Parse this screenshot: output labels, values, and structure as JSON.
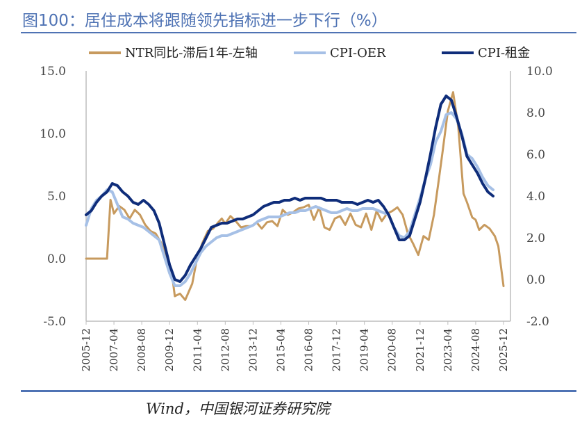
{
  "header": {
    "title": "图100：居住成本将跟随领先指标进一步下行（%）"
  },
  "footer": {
    "source": "Wind，中国银河证券研究院"
  },
  "chart_data": {
    "type": "line",
    "x_ticks": [
      "2005-12",
      "2007-04",
      "2008-08",
      "2009-12",
      "2011-04",
      "2012-08",
      "2013-12",
      "2015-04",
      "2016-08",
      "2017-12",
      "2019-04",
      "2020-08",
      "2021-12",
      "2023-04",
      "2024-08",
      "2025-12"
    ],
    "y_left": {
      "min": -5,
      "max": 15,
      "ticks": [
        "-5.0",
        "0.0",
        "5.0",
        "10.0",
        "15.0"
      ]
    },
    "y_right": {
      "min": -2,
      "max": 10,
      "ticks": [
        "-2.0",
        "0.0",
        "2.0",
        "4.0",
        "6.0",
        "8.0",
        "10.0"
      ]
    },
    "legend_position": "top",
    "series": [
      {
        "name": "NTR同比-滞后1年-左轴",
        "axis": "left",
        "color": "#c79a5e",
        "width": 3,
        "points": [
          [
            "2005-12",
            0.0
          ],
          [
            "2006-03",
            0.0
          ],
          [
            "2006-06",
            0.0
          ],
          [
            "2006-09",
            0.0
          ],
          [
            "2006-12",
            0.0
          ],
          [
            "2007-02",
            4.7
          ],
          [
            "2007-04",
            3.6
          ],
          [
            "2007-07",
            4.2
          ],
          [
            "2007-10",
            3.9
          ],
          [
            "2008-01",
            3.2
          ],
          [
            "2008-04",
            3.9
          ],
          [
            "2008-07",
            3.5
          ],
          [
            "2008-10",
            2.7
          ],
          [
            "2009-01",
            2.2
          ],
          [
            "2009-04",
            2.0
          ],
          [
            "2009-07",
            1.3
          ],
          [
            "2009-10",
            0.2
          ],
          [
            "2010-01",
            -0.8
          ],
          [
            "2010-03",
            -3.0
          ],
          [
            "2010-06",
            -2.8
          ],
          [
            "2010-09",
            -3.3
          ],
          [
            "2011-01",
            -2.0
          ],
          [
            "2011-04",
            0.2
          ],
          [
            "2011-07",
            1.3
          ],
          [
            "2011-10",
            2.2
          ],
          [
            "2012-01",
            2.4
          ],
          [
            "2012-04",
            2.9
          ],
          [
            "2012-06",
            3.2
          ],
          [
            "2012-08",
            2.8
          ],
          [
            "2012-11",
            3.4
          ],
          [
            "2013-02",
            3.0
          ],
          [
            "2013-05",
            2.5
          ],
          [
            "2013-08",
            2.6
          ],
          [
            "2013-11",
            2.6
          ],
          [
            "2014-02",
            2.9
          ],
          [
            "2014-05",
            2.4
          ],
          [
            "2014-08",
            2.9
          ],
          [
            "2014-11",
            3.0
          ],
          [
            "2015-02",
            2.6
          ],
          [
            "2015-05",
            3.9
          ],
          [
            "2015-08",
            3.5
          ],
          [
            "2015-11",
            3.7
          ],
          [
            "2016-02",
            4.0
          ],
          [
            "2016-05",
            4.1
          ],
          [
            "2016-08",
            4.3
          ],
          [
            "2016-11",
            3.1
          ],
          [
            "2017-02",
            4.1
          ],
          [
            "2017-05",
            2.5
          ],
          [
            "2017-08",
            2.3
          ],
          [
            "2017-11",
            3.2
          ],
          [
            "2018-02",
            3.4
          ],
          [
            "2018-05",
            2.7
          ],
          [
            "2018-08",
            3.6
          ],
          [
            "2018-11",
            2.7
          ],
          [
            "2019-02",
            2.5
          ],
          [
            "2019-05",
            3.6
          ],
          [
            "2019-08",
            2.3
          ],
          [
            "2019-11",
            3.8
          ],
          [
            "2020-02",
            3.0
          ],
          [
            "2020-05",
            3.6
          ],
          [
            "2020-08",
            3.8
          ],
          [
            "2020-11",
            4.1
          ],
          [
            "2021-02",
            3.5
          ],
          [
            "2021-05",
            2.0
          ],
          [
            "2021-08",
            1.2
          ],
          [
            "2021-11",
            0.3
          ],
          [
            "2022-02",
            1.8
          ],
          [
            "2022-05",
            1.5
          ],
          [
            "2022-08",
            3.5
          ],
          [
            "2022-11",
            6.5
          ],
          [
            "2023-01",
            8.6
          ],
          [
            "2023-04",
            11.8
          ],
          [
            "2023-07",
            13.3
          ],
          [
            "2023-10",
            10.5
          ],
          [
            "2024-01",
            5.2
          ],
          [
            "2024-03",
            4.5
          ],
          [
            "2024-06",
            3.3
          ],
          [
            "2024-08",
            3.1
          ],
          [
            "2024-10",
            2.3
          ],
          [
            "2025-01",
            2.7
          ],
          [
            "2025-04",
            2.4
          ],
          [
            "2025-07",
            1.8
          ],
          [
            "2025-09",
            1.0
          ],
          [
            "2025-12",
            -2.2
          ]
        ]
      },
      {
        "name": "CPI-OER",
        "axis": "right",
        "color": "#a6c0e6",
        "width": 4,
        "points": [
          [
            "2005-12",
            2.6
          ],
          [
            "2006-03",
            3.4
          ],
          [
            "2006-06",
            3.8
          ],
          [
            "2006-09",
            4.0
          ],
          [
            "2006-12",
            4.3
          ],
          [
            "2007-03",
            4.2
          ],
          [
            "2007-06",
            3.6
          ],
          [
            "2007-09",
            3.0
          ],
          [
            "2007-12",
            2.9
          ],
          [
            "2008-03",
            2.7
          ],
          [
            "2008-06",
            2.6
          ],
          [
            "2008-09",
            2.5
          ],
          [
            "2008-12",
            2.3
          ],
          [
            "2009-03",
            2.1
          ],
          [
            "2009-06",
            1.9
          ],
          [
            "2009-09",
            1.1
          ],
          [
            "2009-12",
            0.3
          ],
          [
            "2010-03",
            -0.3
          ],
          [
            "2010-06",
            -0.3
          ],
          [
            "2010-09",
            -0.1
          ],
          [
            "2010-12",
            0.3
          ],
          [
            "2011-03",
            0.8
          ],
          [
            "2011-06",
            1.3
          ],
          [
            "2011-09",
            1.6
          ],
          [
            "2011-12",
            1.8
          ],
          [
            "2012-03",
            2.0
          ],
          [
            "2012-06",
            2.1
          ],
          [
            "2012-09",
            2.1
          ],
          [
            "2012-12",
            2.2
          ],
          [
            "2013-03",
            2.3
          ],
          [
            "2013-06",
            2.4
          ],
          [
            "2013-09",
            2.5
          ],
          [
            "2013-12",
            2.6
          ],
          [
            "2014-03",
            2.8
          ],
          [
            "2014-06",
            2.9
          ],
          [
            "2014-09",
            3.0
          ],
          [
            "2014-12",
            3.0
          ],
          [
            "2015-03",
            3.0
          ],
          [
            "2015-06",
            3.1
          ],
          [
            "2015-09",
            3.2
          ],
          [
            "2015-12",
            3.2
          ],
          [
            "2016-03",
            3.3
          ],
          [
            "2016-06",
            3.3
          ],
          [
            "2016-09",
            3.4
          ],
          [
            "2016-12",
            3.5
          ],
          [
            "2017-03",
            3.4
          ],
          [
            "2017-06",
            3.3
          ],
          [
            "2017-09",
            3.2
          ],
          [
            "2017-12",
            3.2
          ],
          [
            "2018-03",
            3.3
          ],
          [
            "2018-06",
            3.4
          ],
          [
            "2018-09",
            3.3
          ],
          [
            "2018-12",
            3.3
          ],
          [
            "2019-03",
            3.4
          ],
          [
            "2019-06",
            3.4
          ],
          [
            "2019-09",
            3.4
          ],
          [
            "2019-12",
            3.3
          ],
          [
            "2020-03",
            3.2
          ],
          [
            "2020-06",
            3.1
          ],
          [
            "2020-09",
            2.5
          ],
          [
            "2020-12",
            2.1
          ],
          [
            "2021-03",
            2.0
          ],
          [
            "2021-06",
            2.3
          ],
          [
            "2021-09",
            3.1
          ],
          [
            "2021-12",
            3.9
          ],
          [
            "2022-03",
            4.8
          ],
          [
            "2022-06",
            5.5
          ],
          [
            "2022-09",
            6.6
          ],
          [
            "2022-12",
            7.1
          ],
          [
            "2023-03",
            7.9
          ],
          [
            "2023-06",
            8.0
          ],
          [
            "2023-09",
            7.7
          ],
          [
            "2023-12",
            7.0
          ],
          [
            "2024-03",
            6.0
          ],
          [
            "2024-06",
            5.8
          ],
          [
            "2024-09",
            5.4
          ],
          [
            "2024-12",
            4.9
          ],
          [
            "2025-03",
            4.5
          ],
          [
            "2025-06",
            4.3
          ]
        ]
      },
      {
        "name": "CPI-租金",
        "axis": "right",
        "color": "#0f2d7a",
        "width": 4,
        "points": [
          [
            "2005-12",
            3.1
          ],
          [
            "2006-03",
            3.3
          ],
          [
            "2006-06",
            3.7
          ],
          [
            "2006-09",
            4.0
          ],
          [
            "2006-12",
            4.2
          ],
          [
            "2007-03",
            4.6
          ],
          [
            "2007-06",
            4.5
          ],
          [
            "2007-09",
            4.2
          ],
          [
            "2007-12",
            4.0
          ],
          [
            "2008-03",
            3.7
          ],
          [
            "2008-06",
            3.6
          ],
          [
            "2008-09",
            3.8
          ],
          [
            "2008-12",
            3.6
          ],
          [
            "2009-03",
            3.3
          ],
          [
            "2009-06",
            2.7
          ],
          [
            "2009-09",
            1.7
          ],
          [
            "2009-12",
            0.7
          ],
          [
            "2010-03",
            0.0
          ],
          [
            "2010-06",
            -0.1
          ],
          [
            "2010-09",
            0.2
          ],
          [
            "2010-12",
            0.7
          ],
          [
            "2011-03",
            1.1
          ],
          [
            "2011-06",
            1.5
          ],
          [
            "2011-09",
            2.0
          ],
          [
            "2011-12",
            2.5
          ],
          [
            "2012-03",
            2.6
          ],
          [
            "2012-06",
            2.7
          ],
          [
            "2012-09",
            2.7
          ],
          [
            "2012-12",
            2.8
          ],
          [
            "2013-03",
            2.9
          ],
          [
            "2013-06",
            2.9
          ],
          [
            "2013-09",
            3.0
          ],
          [
            "2013-12",
            3.1
          ],
          [
            "2014-03",
            3.3
          ],
          [
            "2014-06",
            3.5
          ],
          [
            "2014-09",
            3.6
          ],
          [
            "2014-12",
            3.7
          ],
          [
            "2015-03",
            3.7
          ],
          [
            "2015-06",
            3.8
          ],
          [
            "2015-09",
            3.8
          ],
          [
            "2015-12",
            3.9
          ],
          [
            "2016-03",
            3.8
          ],
          [
            "2016-06",
            3.9
          ],
          [
            "2016-09",
            3.9
          ],
          [
            "2016-12",
            3.9
          ],
          [
            "2017-03",
            3.9
          ],
          [
            "2017-06",
            3.8
          ],
          [
            "2017-09",
            3.8
          ],
          [
            "2017-12",
            3.8
          ],
          [
            "2018-03",
            3.7
          ],
          [
            "2018-06",
            3.7
          ],
          [
            "2018-09",
            3.7
          ],
          [
            "2018-12",
            3.6
          ],
          [
            "2019-03",
            3.7
          ],
          [
            "2019-06",
            3.8
          ],
          [
            "2019-09",
            3.7
          ],
          [
            "2019-12",
            3.8
          ],
          [
            "2020-03",
            3.5
          ],
          [
            "2020-06",
            3.1
          ],
          [
            "2020-09",
            2.5
          ],
          [
            "2020-12",
            1.9
          ],
          [
            "2021-03",
            1.9
          ],
          [
            "2021-06",
            2.1
          ],
          [
            "2021-09",
            2.9
          ],
          [
            "2021-12",
            3.7
          ],
          [
            "2022-03",
            4.8
          ],
          [
            "2022-06",
            6.0
          ],
          [
            "2022-09",
            7.3
          ],
          [
            "2022-12",
            8.4
          ],
          [
            "2023-03",
            8.8
          ],
          [
            "2023-06",
            8.6
          ],
          [
            "2023-09",
            7.8
          ],
          [
            "2023-12",
            6.9
          ],
          [
            "2024-03",
            5.9
          ],
          [
            "2024-06",
            5.5
          ],
          [
            "2024-09",
            5.1
          ],
          [
            "2024-12",
            4.6
          ],
          [
            "2025-03",
            4.2
          ],
          [
            "2025-06",
            4.0
          ]
        ]
      }
    ]
  }
}
